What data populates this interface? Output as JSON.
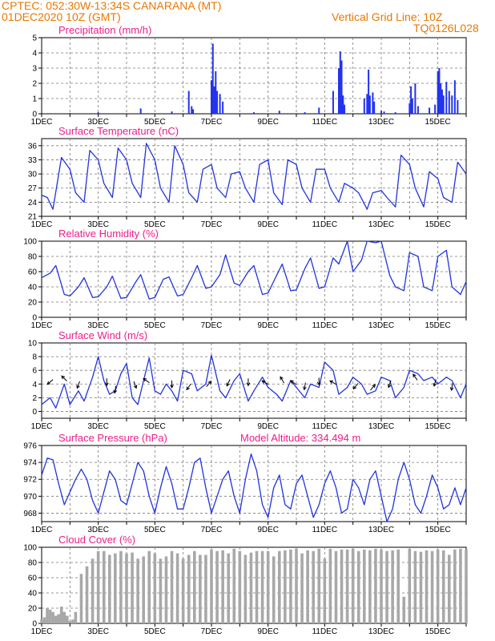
{
  "header": {
    "line1": "CPTEC:   052:30W-13:34S   CANARANA (MT)",
    "line2": "01DEC2020 10Z (GMT)",
    "grid_note": "Vertical Grid Line: 10Z",
    "code": "TQ0126L028"
  },
  "colors": {
    "header": "#e87800",
    "title": "#ee1e8c",
    "line": "#2233dd",
    "bar": "#2233ee",
    "cloud": "#a8a8a8"
  },
  "x_ticks": [
    "1DEC",
    "3DEC",
    "5DEC",
    "7DEC",
    "9DEC",
    "11DEC",
    "13DEC",
    "15DEC"
  ],
  "chart_data": [
    {
      "id": "precip",
      "type": "bar",
      "title": "Precipitation (mm/h)",
      "x_range_days": [
        1,
        16
      ],
      "ylim": [
        0,
        5
      ],
      "yticks": [
        "0",
        "1",
        "2",
        "3",
        "4",
        "5"
      ],
      "grid": true,
      "x_days": [
        2.0,
        3.0,
        4.5,
        5.6,
        6.2,
        6.3,
        6.35,
        7.0,
        7.05,
        7.1,
        7.15,
        7.2,
        7.3,
        7.4,
        8.5,
        9.4,
        10.3,
        10.8,
        11.3,
        11.5,
        11.55,
        11.6,
        11.65,
        11.7,
        12.4,
        12.5,
        12.55,
        12.6,
        12.7,
        12.75,
        13.0,
        13.1,
        13.5,
        14.0,
        14.05,
        14.1,
        14.2,
        14.3,
        14.7,
        14.9,
        15.0,
        15.05,
        15.1,
        15.15,
        15.2,
        15.3,
        15.4,
        15.5,
        15.6,
        15.7
      ],
      "values": [
        0.05,
        0.1,
        0.35,
        0.15,
        1.5,
        0.5,
        0.3,
        2.2,
        4.6,
        1.8,
        2.8,
        1.5,
        1.3,
        0.8,
        0.1,
        0.2,
        0.1,
        0.4,
        1.5,
        3.0,
        4.1,
        3.5,
        1.2,
        0.6,
        1.0,
        1.3,
        2.9,
        1.2,
        1.4,
        0.8,
        0.2,
        0.15,
        0.1,
        0.7,
        1.8,
        1.0,
        2.0,
        0.5,
        0.4,
        0.6,
        2.8,
        3.0,
        2.0,
        1.6,
        1.2,
        2.1,
        1.5,
        1.2,
        2.2,
        0.9
      ]
    },
    {
      "id": "temp",
      "type": "line",
      "title": "Surface Temperature (nC)",
      "x_range_days": [
        1,
        16
      ],
      "ylim": [
        21,
        37.5
      ],
      "yticks": [
        "21",
        "24",
        "27",
        "30",
        "33",
        "36"
      ],
      "grid": true,
      "x_days": [
        1.0,
        1.2,
        1.4,
        1.7,
        2.0,
        2.2,
        2.5,
        2.7,
        3.0,
        3.2,
        3.5,
        3.7,
        4.0,
        4.2,
        4.5,
        4.7,
        5.0,
        5.2,
        5.5,
        5.7,
        6.0,
        6.2,
        6.5,
        6.7,
        7.0,
        7.2,
        7.5,
        7.7,
        8.0,
        8.2,
        8.5,
        8.7,
        9.0,
        9.2,
        9.5,
        9.7,
        10.0,
        10.2,
        10.5,
        10.7,
        11.0,
        11.2,
        11.5,
        11.7,
        12.0,
        12.2,
        12.5,
        12.7,
        13.0,
        13.2,
        13.5,
        13.7,
        14.0,
        14.2,
        14.5,
        14.7,
        15.0,
        15.2,
        15.5,
        15.7,
        16.0
      ],
      "values": [
        25.5,
        25,
        22.5,
        33.5,
        31,
        26,
        24,
        35,
        33,
        28,
        25,
        35.5,
        33,
        28,
        25,
        36.5,
        33,
        27,
        24,
        36,
        32,
        26,
        24,
        31,
        32,
        27,
        25,
        30,
        30.5,
        27,
        24,
        32,
        33,
        26,
        23.5,
        33,
        32,
        27,
        24,
        31,
        31,
        27,
        24,
        28,
        27,
        26,
        22.5,
        26,
        26.5,
        25,
        23,
        34,
        32,
        27,
        23,
        30.5,
        29,
        25,
        24,
        32.5,
        30
      ]
    },
    {
      "id": "rh",
      "type": "line",
      "title": "Relative Humidity (%)",
      "x_range_days": [
        1,
        16
      ],
      "ylim": [
        0,
        100
      ],
      "yticks": [
        "0",
        "20",
        "40",
        "60",
        "80",
        "100"
      ],
      "grid": true,
      "x_days": [
        1.0,
        1.3,
        1.5,
        1.8,
        2.0,
        2.3,
        2.5,
        2.8,
        3.0,
        3.3,
        3.5,
        3.8,
        4.0,
        4.3,
        4.5,
        4.8,
        5.0,
        5.3,
        5.5,
        5.8,
        6.0,
        6.3,
        6.5,
        6.8,
        7.0,
        7.3,
        7.5,
        7.8,
        8.0,
        8.3,
        8.5,
        8.8,
        9.0,
        9.3,
        9.5,
        9.8,
        10.0,
        10.3,
        10.5,
        10.8,
        11.0,
        11.3,
        11.5,
        11.8,
        12.0,
        12.3,
        12.5,
        12.8,
        13.0,
        13.3,
        13.5,
        13.8,
        14.0,
        14.3,
        14.5,
        14.8,
        15.0,
        15.3,
        15.5,
        15.8,
        16.0
      ],
      "values": [
        52,
        58,
        68,
        30,
        28,
        40,
        52,
        26,
        27,
        40,
        54,
        25,
        26,
        45,
        56,
        24,
        26,
        50,
        53,
        28,
        30,
        52,
        68,
        38,
        40,
        56,
        82,
        45,
        42,
        60,
        68,
        30,
        32,
        55,
        70,
        35,
        36,
        64,
        78,
        38,
        40,
        78,
        70,
        100,
        60,
        75,
        100,
        98,
        100,
        55,
        40,
        35,
        85,
        80,
        40,
        35,
        80,
        88,
        40,
        30,
        47
      ]
    },
    {
      "id": "wind",
      "type": "line",
      "title": "Surface Wind (m/s)",
      "x_range_days": [
        1,
        16
      ],
      "ylim": [
        -1,
        10
      ],
      "yticks": [
        "0",
        "2",
        "4",
        "6",
        "8",
        "10"
      ],
      "grid": true,
      "x_days": [
        1.0,
        1.3,
        1.5,
        1.8,
        2.0,
        2.3,
        2.5,
        2.8,
        3.0,
        3.2,
        3.4,
        3.6,
        3.8,
        4.0,
        4.2,
        4.4,
        4.6,
        4.8,
        5.0,
        5.2,
        5.4,
        5.6,
        5.8,
        6.0,
        6.3,
        6.5,
        6.8,
        7.0,
        7.3,
        7.5,
        7.8,
        8.0,
        8.3,
        8.5,
        8.8,
        9.0,
        9.3,
        9.5,
        9.8,
        10.0,
        10.3,
        10.5,
        10.8,
        11.0,
        11.3,
        11.5,
        11.8,
        12.0,
        12.3,
        12.5,
        12.8,
        13.0,
        13.3,
        13.5,
        13.8,
        14.0,
        14.3,
        14.5,
        14.8,
        15.0,
        15.3,
        15.5,
        15.8,
        16.0
      ],
      "values": [
        1.0,
        2.0,
        0.5,
        4.0,
        1.0,
        3.0,
        1.5,
        5.0,
        8.0,
        4.5,
        2.5,
        3.0,
        5.5,
        7.0,
        2.0,
        1.0,
        4.5,
        7.8,
        3.0,
        2.5,
        4.0,
        3.0,
        1.5,
        6.0,
        5.5,
        3.0,
        4.0,
        8.2,
        3.0,
        2.0,
        4.5,
        5.5,
        1.5,
        3.0,
        5.0,
        3.5,
        2.5,
        1.5,
        4.5,
        3.5,
        2.0,
        4.0,
        3.5,
        7.2,
        6.0,
        2.5,
        3.5,
        5.0,
        4.0,
        2.5,
        3.0,
        5.0,
        4.5,
        2.0,
        3.5,
        6.0,
        5.5,
        4.5,
        5.0,
        4.0,
        5.0,
        4.5,
        2.0,
        4.0
      ],
      "arrows": [
        {
          "day": 1.3,
          "speed": 4.3,
          "dir": 230
        },
        {
          "day": 1.8,
          "speed": 4.8,
          "dir": 315
        },
        {
          "day": 2.3,
          "speed": 3.9,
          "dir": 200
        },
        {
          "day": 3.3,
          "speed": 4.3,
          "dir": 180
        },
        {
          "day": 3.6,
          "speed": 3.2,
          "dir": 190
        },
        {
          "day": 4.3,
          "speed": 3.9,
          "dir": 160
        },
        {
          "day": 4.7,
          "speed": 4.5,
          "dir": 305
        },
        {
          "day": 5.6,
          "speed": 4.0,
          "dir": 180
        },
        {
          "day": 6.2,
          "speed": 3.6,
          "dir": 215
        },
        {
          "day": 6.9,
          "speed": 4.0,
          "dir": 40
        },
        {
          "day": 7.6,
          "speed": 4.2,
          "dir": 205
        },
        {
          "day": 8.3,
          "speed": 4.3,
          "dir": 180
        },
        {
          "day": 8.9,
          "speed": 4.2,
          "dir": 300
        },
        {
          "day": 9.5,
          "speed": 4.6,
          "dir": 330
        },
        {
          "day": 9.9,
          "speed": 4.2,
          "dir": 305
        },
        {
          "day": 10.3,
          "speed": 3.7,
          "dir": 190
        },
        {
          "day": 10.8,
          "speed": 4.4,
          "dir": 180
        },
        {
          "day": 11.3,
          "speed": 4.2,
          "dir": 300
        },
        {
          "day": 12.1,
          "speed": 3.7,
          "dir": 220
        },
        {
          "day": 12.7,
          "speed": 3.5,
          "dir": 40
        },
        {
          "day": 13.3,
          "speed": 4.0,
          "dir": 200
        },
        {
          "day": 14.2,
          "speed": 5.0,
          "dir": 325
        },
        {
          "day": 14.9,
          "speed": 4.2,
          "dir": 195
        },
        {
          "day": 15.5,
          "speed": 3.6,
          "dir": 190
        }
      ]
    },
    {
      "id": "pressure",
      "type": "line",
      "title": "Surface Pressure (hPa)",
      "subtitle": "Model Altitude: 334.494 m",
      "x_range_days": [
        1,
        16
      ],
      "ylim": [
        967,
        976
      ],
      "yticks": [
        "968",
        "970",
        "972",
        "974",
        "976"
      ],
      "grid": true,
      "x_days": [
        1.0,
        1.2,
        1.4,
        1.6,
        1.8,
        2.0,
        2.2,
        2.4,
        2.6,
        2.8,
        3.0,
        3.2,
        3.4,
        3.6,
        3.8,
        4.0,
        4.2,
        4.4,
        4.6,
        4.8,
        5.0,
        5.2,
        5.4,
        5.6,
        5.8,
        6.0,
        6.2,
        6.4,
        6.6,
        6.8,
        7.0,
        7.2,
        7.4,
        7.6,
        7.8,
        8.0,
        8.2,
        8.4,
        8.6,
        8.8,
        9.0,
        9.2,
        9.4,
        9.6,
        9.8,
        10.0,
        10.2,
        10.4,
        10.6,
        10.8,
        11.0,
        11.2,
        11.4,
        11.6,
        11.8,
        12.0,
        12.2,
        12.4,
        12.6,
        12.8,
        13.0,
        13.2,
        13.4,
        13.6,
        13.8,
        14.0,
        14.2,
        14.4,
        14.6,
        14.8,
        15.0,
        15.2,
        15.4,
        15.6,
        15.8,
        16.0
      ],
      "values": [
        972.5,
        974.5,
        974.3,
        971.5,
        969,
        970.5,
        972,
        973.2,
        972,
        969.5,
        968,
        970.5,
        973,
        972,
        969.5,
        969,
        971.5,
        974,
        973,
        970,
        968,
        971,
        973.5,
        971.5,
        968.5,
        968.5,
        971,
        974,
        974.5,
        971,
        968,
        970,
        972,
        973,
        970,
        968,
        972,
        975,
        973,
        969,
        967.5,
        971,
        972.5,
        969,
        968.5,
        971.5,
        972.5,
        970,
        967.5,
        969,
        971.5,
        973,
        971,
        968,
        968.5,
        972,
        971,
        969,
        972,
        973,
        970,
        967,
        968.5,
        972,
        974,
        972,
        969,
        968,
        970,
        972.5,
        971,
        968.5,
        969,
        971,
        969,
        971
      ]
    },
    {
      "id": "cloud",
      "type": "bar",
      "title": "Cloud Cover (%)",
      "x_range_days": [
        1,
        16
      ],
      "ylim": [
        0,
        100
      ],
      "yticks": [
        "0",
        "20",
        "40",
        "60",
        "80",
        "100"
      ],
      "grid": true,
      "x_days": [
        1.0,
        1.1,
        1.2,
        1.3,
        1.4,
        1.5,
        1.6,
        1.7,
        1.8,
        1.9,
        2.0,
        2.1,
        2.2,
        2.4,
        2.6,
        2.8,
        3.0,
        3.2,
        3.4,
        3.6,
        3.8,
        4.0,
        4.2,
        4.4,
        4.6,
        4.8,
        5.0,
        5.2,
        5.4,
        5.6,
        5.8,
        6.0,
        6.2,
        6.4,
        6.6,
        6.8,
        7.0,
        7.2,
        7.4,
        7.6,
        7.8,
        8.0,
        8.2,
        8.4,
        8.6,
        8.8,
        9.0,
        9.2,
        9.4,
        9.6,
        9.8,
        10.0,
        10.2,
        10.4,
        10.6,
        10.8,
        11.0,
        11.2,
        11.4,
        11.6,
        11.8,
        12.0,
        12.2,
        12.4,
        12.6,
        12.8,
        13.0,
        13.2,
        13.4,
        13.6,
        13.8,
        14.0,
        14.2,
        14.4,
        14.6,
        14.8,
        15.0,
        15.2,
        15.4,
        15.6,
        15.8,
        16.0
      ],
      "values": [
        5,
        8,
        20,
        18,
        15,
        10,
        12,
        22,
        15,
        10,
        3,
        5,
        15,
        65,
        75,
        85,
        95,
        95,
        90,
        92,
        95,
        92,
        93,
        85,
        88,
        95,
        92,
        85,
        88,
        95,
        92,
        85,
        90,
        95,
        90,
        90,
        97,
        95,
        96,
        92,
        98,
        95,
        90,
        93,
        95,
        95,
        95,
        88,
        95,
        96,
        97,
        98,
        92,
        96,
        95,
        98,
        85,
        98,
        95,
        97,
        97,
        98,
        95,
        97,
        96,
        98,
        97,
        95,
        96,
        97,
        35,
        98,
        95,
        94,
        96,
        95,
        97,
        96,
        90,
        97,
        98,
        97
      ]
    }
  ]
}
